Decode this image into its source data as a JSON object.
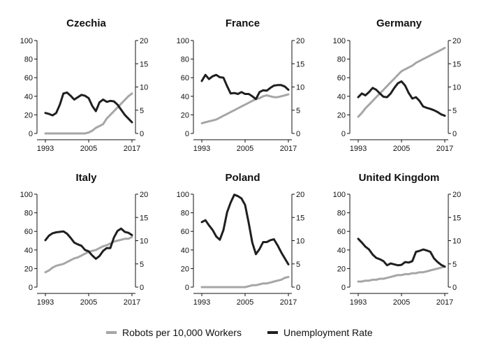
{
  "colors": {
    "robots": "#a6a6a6",
    "unemployment": "#1f1f1f"
  },
  "legend": {
    "robots_label": "Robots per 10,000 Workers",
    "unemployment_label": "Unemployment Rate"
  },
  "chart_data": {
    "type": "line",
    "layout": "small-multiples 2x3",
    "x_range": [
      1993,
      2017
    ],
    "x_ticks": [
      1993,
      2005,
      2017
    ],
    "left_axis": {
      "range": [
        0,
        100
      ],
      "ticks": [
        0,
        20,
        40,
        60,
        80,
        100
      ]
    },
    "right_axis": {
      "range": [
        0,
        20
      ],
      "ticks": [
        0,
        5,
        10,
        15,
        20
      ]
    },
    "years": [
      1993,
      1994,
      1995,
      1996,
      1997,
      1998,
      1999,
      2000,
      2001,
      2002,
      2003,
      2004,
      2005,
      2006,
      2007,
      2008,
      2009,
      2010,
      2011,
      2012,
      2013,
      2014,
      2015,
      2016,
      2017
    ],
    "panels": [
      {
        "title": "Czechia",
        "robots": [
          0,
          0,
          0,
          0,
          0,
          0,
          0,
          0,
          0,
          0,
          0,
          0,
          1,
          3,
          6,
          8,
          10,
          16,
          20,
          24,
          28,
          32,
          36,
          40,
          43
        ],
        "unemployment": [
          4.4,
          4.2,
          3.9,
          4.4,
          6.2,
          8.6,
          8.8,
          8.1,
          7.3,
          7.8,
          8.3,
          8.1,
          7.6,
          5.9,
          4.8,
          6.7,
          7.3,
          6.8,
          7.0,
          6.9,
          6.2,
          5.1,
          4.0,
          3.2,
          2.4
        ]
      },
      {
        "title": "France",
        "robots": [
          11,
          12,
          13,
          14,
          15,
          17,
          19,
          21,
          23,
          25,
          27,
          29,
          31,
          33,
          35,
          37,
          38,
          40,
          41,
          40,
          39,
          39,
          40,
          41,
          42
        ],
        "unemployment": [
          11.3,
          12.6,
          11.7,
          12.3,
          12.6,
          12.1,
          12.0,
          10.2,
          8.6,
          8.7,
          8.5,
          8.9,
          8.5,
          8.5,
          8.0,
          7.4,
          8.9,
          9.3,
          9.2,
          9.8,
          10.3,
          10.4,
          10.4,
          10.1,
          9.4
        ]
      },
      {
        "title": "Germany",
        "robots": [
          18,
          22,
          27,
          31,
          35,
          39,
          43,
          47,
          51,
          55,
          59,
          63,
          67,
          69,
          71,
          73,
          76,
          78,
          80,
          82,
          84,
          86,
          88,
          90,
          92
        ],
        "unemployment": [
          7.8,
          8.6,
          8.2,
          8.9,
          9.8,
          9.4,
          8.6,
          7.9,
          7.8,
          8.6,
          9.8,
          10.8,
          11.2,
          10.3,
          8.7,
          7.5,
          7.8,
          7.0,
          5.8,
          5.5,
          5.3,
          5.0,
          4.6,
          4.1,
          3.8
        ]
      },
      {
        "title": "Italy",
        "robots": [
          16,
          18,
          21,
          23,
          24,
          25,
          27,
          29,
          31,
          32,
          34,
          36,
          38,
          39,
          40,
          42,
          44,
          45,
          47,
          49,
          50,
          51,
          52,
          52,
          54
        ],
        "unemployment": [
          10.1,
          11.1,
          11.6,
          11.8,
          11.9,
          12.0,
          11.5,
          10.6,
          9.6,
          9.2,
          8.9,
          8.0,
          7.7,
          6.8,
          6.1,
          6.7,
          7.8,
          8.4,
          8.4,
          10.7,
          12.1,
          12.6,
          11.9,
          11.7,
          11.2
        ]
      },
      {
        "title": "Poland",
        "robots": [
          0,
          0,
          0,
          0,
          0,
          0,
          0,
          0,
          0,
          0,
          0,
          0,
          0,
          1,
          2,
          2,
          3,
          4,
          4,
          5,
          6,
          7,
          8,
          10,
          11
        ],
        "unemployment": [
          14.0,
          14.4,
          13.3,
          12.3,
          10.9,
          10.2,
          12.3,
          16.1,
          18.2,
          19.9,
          19.6,
          19.1,
          17.7,
          13.8,
          9.6,
          7.1,
          8.2,
          9.7,
          9.7,
          10.1,
          10.3,
          9.0,
          7.5,
          6.2,
          4.9
        ]
      },
      {
        "title": "United Kingdom",
        "robots": [
          6,
          6,
          7,
          7,
          8,
          8,
          9,
          9,
          10,
          11,
          12,
          13,
          13,
          14,
          14,
          15,
          15,
          16,
          16,
          17,
          18,
          19,
          20,
          21,
          22
        ],
        "unemployment": [
          10.4,
          9.6,
          8.7,
          8.1,
          7.0,
          6.3,
          6.0,
          5.6,
          4.7,
          5.1,
          4.9,
          4.7,
          4.8,
          5.4,
          5.3,
          5.6,
          7.6,
          7.8,
          8.1,
          7.9,
          7.6,
          6.2,
          5.4,
          4.8,
          4.4
        ]
      }
    ]
  }
}
